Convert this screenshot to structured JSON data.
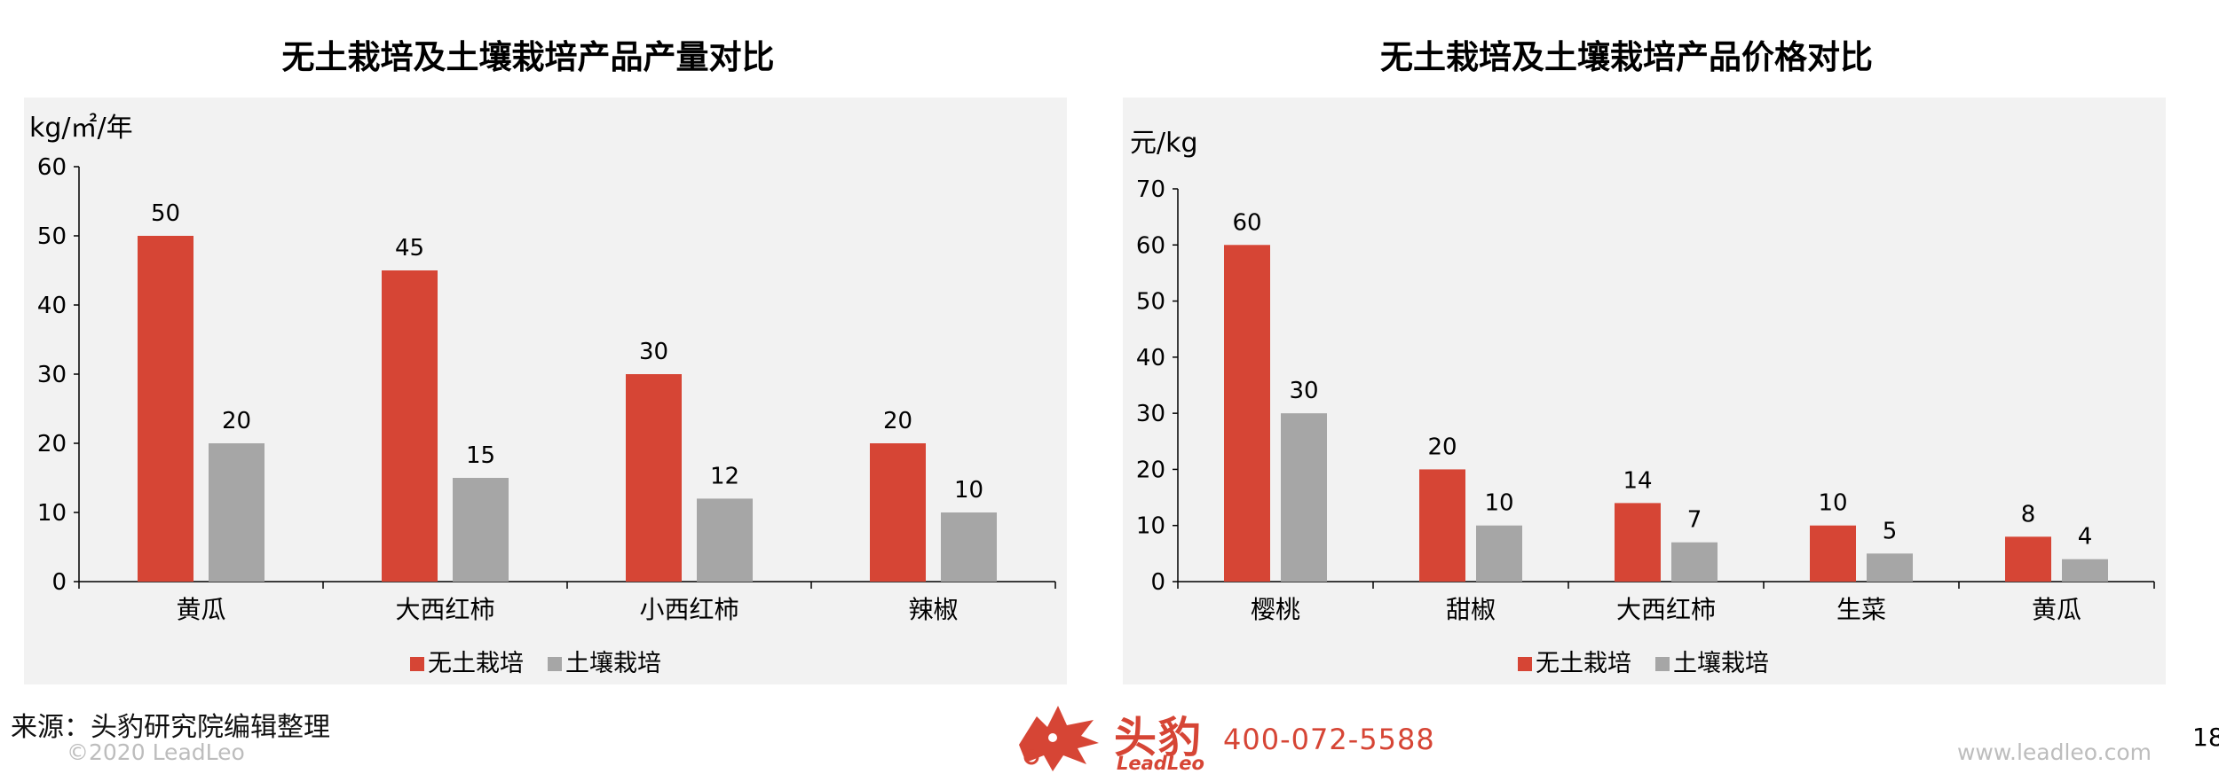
{
  "colors": {
    "soilless": "#d64535",
    "soil": "#a6a6a6",
    "panel_bg": "#f2f2f2"
  },
  "chart_data": [
    {
      "type": "bar",
      "title": "无土栽培及土壤栽培产品产量对比",
      "unit_label": "kg/㎡/年",
      "categories": [
        "黄瓜",
        "大西红柿",
        "小西红柿",
        "辣椒"
      ],
      "series": [
        {
          "name": "无土栽培",
          "values": [
            50,
            45,
            30,
            20
          ]
        },
        {
          "name": "土壤栽培",
          "values": [
            20,
            15,
            12,
            10
          ]
        }
      ],
      "ylim": [
        0,
        60
      ],
      "yticks": [
        0,
        10,
        20,
        30,
        40,
        50,
        60
      ],
      "grid": false,
      "legend_position": "bottom"
    },
    {
      "type": "bar",
      "title": "无土栽培及土壤栽培产品价格对比",
      "unit_label": "元/kg",
      "categories": [
        "樱桃",
        "甜椒",
        "大西红柿",
        "生菜",
        "黄瓜"
      ],
      "series": [
        {
          "name": "无土栽培",
          "values": [
            60,
            20,
            14,
            10,
            8
          ]
        },
        {
          "name": "土壤栽培",
          "values": [
            30,
            10,
            7,
            5,
            4
          ]
        }
      ],
      "ylim": [
        0,
        70
      ],
      "yticks": [
        0,
        10,
        20,
        30,
        40,
        50,
        60,
        70
      ],
      "grid": false,
      "legend_position": "bottom"
    }
  ],
  "footer": {
    "source": "来源：头豹研究院编辑整理",
    "copyright": "©2020 LeadLeo",
    "brand_cn": "头豹",
    "brand_en": "LeadLeo",
    "phone": "400-072-5588",
    "website": "www.leadleo.com",
    "page_number": "18"
  },
  "icons": {
    "logo": "leopard-head-logo-icon"
  }
}
